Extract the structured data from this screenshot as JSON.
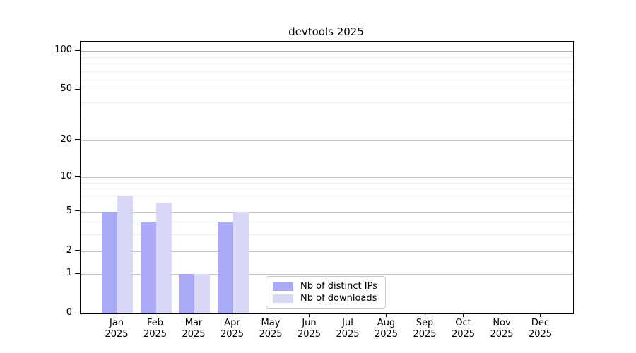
{
  "chart_data": {
    "type": "bar",
    "title": "devtools 2025",
    "categories": [
      "Jan",
      "Feb",
      "Mar",
      "Apr",
      "May",
      "Jun",
      "Jul",
      "Aug",
      "Sep",
      "Oct",
      "Nov",
      "Dec"
    ],
    "year_label": "2025",
    "series": [
      {
        "name": "Nb of distinct IPs",
        "color": "#a9a9f7",
        "values": [
          5,
          4,
          1,
          4,
          0,
          0,
          0,
          0,
          0,
          0,
          0,
          0
        ]
      },
      {
        "name": "Nb of downloads",
        "color": "#d9d9f7",
        "values": [
          7,
          6,
          1,
          5,
          0,
          0,
          0,
          0,
          0,
          0,
          0,
          0
        ]
      }
    ],
    "xlabel": "",
    "ylabel": "",
    "yscale": "log1p",
    "yticks": [
      0,
      1,
      2,
      5,
      10,
      20,
      50,
      100
    ],
    "minor_yticks": [
      3,
      4,
      6,
      7,
      8,
      9,
      30,
      40,
      60,
      70,
      80,
      90
    ],
    "ylim": [
      0,
      118
    ],
    "grid": "on",
    "legend_position": "lower center",
    "colors": {
      "major_grid": "#c6c6c6",
      "top_grid": "#b2b2b2",
      "minor_grid": "#ededed",
      "axis": "#000000"
    }
  }
}
